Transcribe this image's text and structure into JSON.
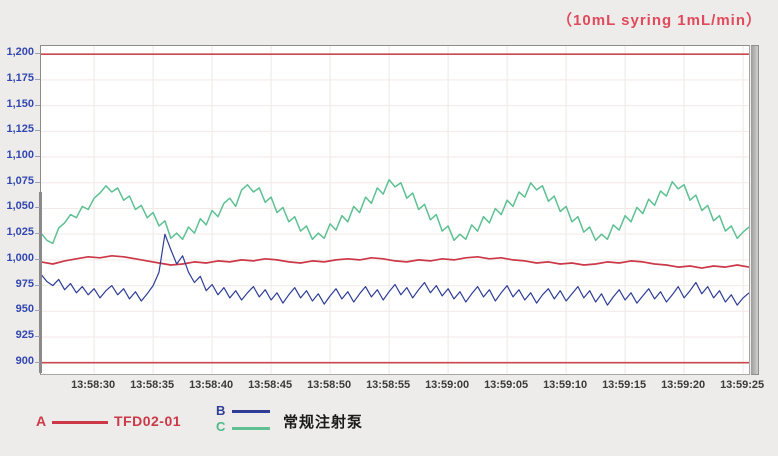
{
  "title": "（10mL syring  1mL/min）",
  "colors": {
    "background": "#edecea",
    "plot_background": "#ffffff",
    "title": "#e04a5c",
    "series_a": "#cb3847",
    "series_b": "#2e3d95",
    "series_c": "#5ec093",
    "limit_line": "#c9474d",
    "y_label": "#3347b0",
    "x_label": "#3a3a3a",
    "grid_horizontal": "#f3e9e7",
    "grid_vertical": "#ebe9e6"
  },
  "legend": {
    "series_a": {
      "letter": "A",
      "name": "TFD02-01"
    },
    "series_b": {
      "letter": "B"
    },
    "series_c": {
      "letter": "C"
    },
    "bc_name": "常规注射泵"
  },
  "chart_data": {
    "type": "line",
    "title": "（10mL syring  1mL/min）",
    "xlabel": "",
    "ylabel": "",
    "x_axis": {
      "unit": "time-of-day",
      "start_seconds": 25.5,
      "end_seconds": 85.5,
      "tick_seconds": [
        30,
        35,
        40,
        45,
        50,
        55,
        60,
        65,
        70,
        75,
        80,
        85
      ],
      "tick_labels": [
        "13:58:30",
        "13:58:35",
        "13:58:40",
        "13:58:45",
        "13:58:50",
        "13:58:55",
        "13:59:00",
        "13:59:05",
        "13:59:10",
        "13:59:15",
        "13:59:20",
        "13:59:25"
      ]
    },
    "y_axis": {
      "min": 889,
      "max": 1208,
      "tick_values": [
        1200,
        1175,
        1150,
        1125,
        1100,
        1075,
        1050,
        1025,
        1000,
        975,
        950,
        925,
        900
      ],
      "tick_labels": [
        "1,200",
        "1,175",
        "1,150",
        "1,125",
        "1,100",
        "1,075",
        "1,050",
        "1,025",
        "1,000",
        "975",
        "950",
        "925",
        "900"
      ]
    },
    "limit_lines": [
      {
        "value": 1200,
        "color": "#c9474d"
      },
      {
        "value": 900,
        "color": "#c9474d"
      }
    ],
    "series": [
      {
        "id": "A",
        "name": "TFD02-01",
        "color": "#cb3847",
        "stroke_width": 1.7,
        "start_seconds": 25.5,
        "interval_seconds": 1,
        "values": [
          998,
          996,
          999,
          1001,
          1003,
          1002,
          1004,
          1003,
          1001,
          999,
          997,
          995,
          996,
          998,
          997,
          999,
          998,
          1000,
          999,
          1001,
          1000,
          998,
          997,
          999,
          998,
          1000,
          1001,
          1000,
          1002,
          1001,
          999,
          998,
          1000,
          999,
          1001,
          1000,
          1002,
          1003,
          1001,
          1002,
          1000,
          999,
          997,
          998,
          996,
          997,
          995,
          996,
          998,
          997,
          999,
          998,
          996,
          995,
          993,
          994,
          992,
          994,
          993,
          995,
          993
        ]
      },
      {
        "id": "B",
        "name": "常规注射泵",
        "color": "#2e3d95",
        "stroke_width": 1.2,
        "start_seconds": 25.5,
        "interval_seconds": 0.5,
        "values": [
          986,
          979,
          975,
          981,
          971,
          977,
          968,
          974,
          966,
          972,
          963,
          970,
          975,
          966,
          972,
          962,
          969,
          960,
          967,
          975,
          988,
          1025,
          1010,
          996,
          1004,
          988,
          978,
          984,
          970,
          976,
          966,
          973,
          963,
          970,
          961,
          968,
          974,
          964,
          971,
          961,
          968,
          958,
          966,
          973,
          963,
          970,
          960,
          967,
          957,
          965,
          972,
          962,
          969,
          959,
          967,
          974,
          964,
          971,
          961,
          969,
          976,
          966,
          973,
          963,
          971,
          978,
          968,
          975,
          965,
          972,
          962,
          969,
          959,
          967,
          974,
          964,
          971,
          960,
          968,
          975,
          964,
          971,
          961,
          968,
          958,
          966,
          972,
          962,
          970,
          960,
          967,
          974,
          963,
          970,
          959,
          967,
          956,
          964,
          971,
          961,
          968,
          958,
          965,
          972,
          962,
          969,
          959,
          966,
          974,
          963,
          970,
          978,
          967,
          974,
          963,
          970,
          959,
          966,
          956,
          963,
          968
        ]
      },
      {
        "id": "C",
        "name": "常规注射泵",
        "color": "#5ec093",
        "stroke_width": 1.5,
        "start_seconds": 25.5,
        "interval_seconds": 0.5,
        "values": [
          1026,
          1019,
          1016,
          1031,
          1036,
          1044,
          1041,
          1052,
          1049,
          1060,
          1065,
          1072,
          1066,
          1070,
          1058,
          1062,
          1049,
          1053,
          1041,
          1046,
          1033,
          1038,
          1021,
          1026,
          1020,
          1032,
          1026,
          1040,
          1034,
          1048,
          1042,
          1055,
          1060,
          1052,
          1068,
          1073,
          1066,
          1070,
          1056,
          1061,
          1046,
          1051,
          1037,
          1042,
          1028,
          1033,
          1020,
          1026,
          1021,
          1035,
          1029,
          1043,
          1037,
          1052,
          1046,
          1061,
          1055,
          1070,
          1064,
          1078,
          1071,
          1075,
          1060,
          1065,
          1049,
          1054,
          1039,
          1044,
          1028,
          1033,
          1019,
          1025,
          1020,
          1034,
          1028,
          1042,
          1036,
          1050,
          1044,
          1058,
          1052,
          1066,
          1061,
          1075,
          1068,
          1072,
          1057,
          1062,
          1047,
          1052,
          1037,
          1042,
          1027,
          1032,
          1019,
          1025,
          1020,
          1034,
          1029,
          1043,
          1037,
          1051,
          1045,
          1059,
          1053,
          1067,
          1062,
          1076,
          1069,
          1073,
          1058,
          1063,
          1048,
          1053,
          1038,
          1043,
          1028,
          1033,
          1021,
          1027,
          1032
        ]
      }
    ]
  }
}
